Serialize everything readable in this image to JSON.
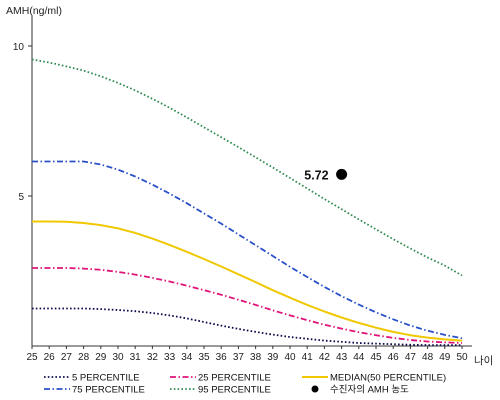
{
  "chart_data": {
    "type": "line",
    "ylabel": "AMH(ng/ml)",
    "xlabel": "나이",
    "x": [
      25,
      26,
      27,
      28,
      29,
      30,
      31,
      32,
      33,
      34,
      35,
      36,
      37,
      38,
      39,
      40,
      41,
      42,
      43,
      44,
      45,
      46,
      47,
      48,
      49,
      50
    ],
    "x_ticks": [
      "25",
      "26",
      "27",
      "28",
      "29",
      "30",
      "31",
      "32",
      "33",
      "34",
      "35",
      "36",
      "37",
      "38",
      "39",
      "40",
      "41",
      "42",
      "43",
      "44",
      "45",
      "46",
      "47",
      "48",
      "49",
      "50"
    ],
    "y_ticks": [
      5,
      10
    ],
    "ylim": [
      0,
      11
    ],
    "xlim": [
      25,
      50
    ],
    "grid": false,
    "legend_position": "bottom",
    "series": [
      {
        "name": "5 PERCENTILE",
        "color": "#0a0a4a",
        "dash": "dotted",
        "values": [
          1.25,
          1.25,
          1.25,
          1.25,
          1.23,
          1.2,
          1.16,
          1.1,
          1.02,
          0.92,
          0.8,
          0.68,
          0.57,
          0.47,
          0.38,
          0.3,
          0.24,
          0.18,
          0.14,
          0.1,
          0.08,
          0.06,
          0.04,
          0.03,
          0.03,
          0.03
        ]
      },
      {
        "name": "25 PERCENTILE",
        "color": "#e0157a",
        "dash": "dashdot",
        "values": [
          2.6,
          2.6,
          2.6,
          2.58,
          2.54,
          2.47,
          2.38,
          2.27,
          2.15,
          2.01,
          1.86,
          1.71,
          1.54,
          1.37,
          1.19,
          1.02,
          0.86,
          0.71,
          0.58,
          0.46,
          0.36,
          0.27,
          0.2,
          0.15,
          0.12,
          0.1
        ]
      },
      {
        "name": "MEDIAN(50 PERCENTILE)",
        "color": "#f0c800",
        "dash": "solid",
        "values": [
          4.15,
          4.15,
          4.14,
          4.1,
          4.03,
          3.92,
          3.77,
          3.58,
          3.37,
          3.14,
          2.9,
          2.65,
          2.39,
          2.13,
          1.86,
          1.61,
          1.37,
          1.15,
          0.95,
          0.77,
          0.61,
          0.47,
          0.36,
          0.28,
          0.22,
          0.18
        ]
      },
      {
        "name": "75 PERCENTILE",
        "color": "#2a50c8",
        "dash": "dashdot",
        "values": [
          6.15,
          6.15,
          6.15,
          6.15,
          6.05,
          5.88,
          5.65,
          5.38,
          5.08,
          4.76,
          4.42,
          4.08,
          3.72,
          3.36,
          3.0,
          2.64,
          2.3,
          1.97,
          1.66,
          1.38,
          1.12,
          0.89,
          0.68,
          0.51,
          0.37,
          0.26
        ]
      },
      {
        "name": "95 PERCENTILE",
        "color": "#2f8a4f",
        "dash": "dotted",
        "values": [
          9.55,
          9.45,
          9.32,
          9.18,
          8.99,
          8.77,
          8.52,
          8.24,
          7.94,
          7.62,
          7.29,
          6.96,
          6.63,
          6.29,
          5.95,
          5.6,
          5.25,
          4.9,
          4.56,
          4.22,
          3.89,
          3.56,
          3.25,
          2.95,
          2.68,
          2.35
        ]
      }
    ],
    "points": [
      {
        "name": "수진자의 AMH 농도",
        "x": 43,
        "y": 5.72,
        "label": "5.72",
        "color": "#000000"
      }
    ]
  }
}
